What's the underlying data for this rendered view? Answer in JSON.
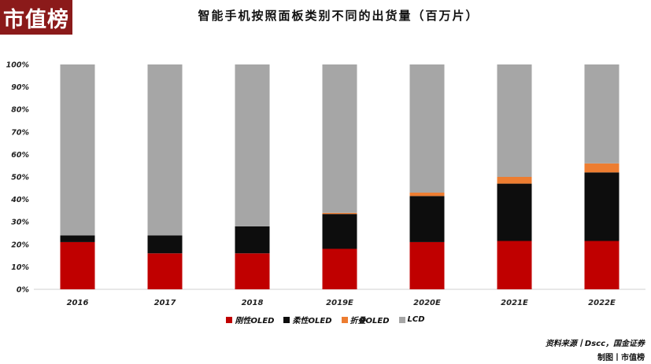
{
  "logo": "市值榜",
  "title": "智能手机按照面板类别不同的出货量（百万片）",
  "source": "资料来源丨Dscc，国金证券",
  "credit": "制图丨市值榜",
  "chart_data": {
    "type": "bar",
    "stacked": true,
    "categories": [
      "2016",
      "2017",
      "2018",
      "2019E",
      "2020E",
      "2021E",
      "2022E"
    ],
    "series": [
      {
        "name": "刚性OLED",
        "color": "#c00000",
        "values": [
          21,
          16,
          16,
          18,
          21,
          21.5,
          21.5
        ]
      },
      {
        "name": "柔性OLED",
        "color": "#0d0d0d",
        "values": [
          3,
          8,
          12,
          15.5,
          20.5,
          25.5,
          30.5
        ]
      },
      {
        "name": "折叠OLED",
        "color": "#ed7d31",
        "values": [
          0,
          0,
          0,
          0.5,
          1.5,
          3,
          4
        ]
      },
      {
        "name": "LCD",
        "color": "#a6a6a6",
        "values": [
          76,
          76,
          72,
          66,
          57,
          50,
          44
        ]
      }
    ],
    "ylim": [
      0,
      100
    ],
    "yticks": [
      "0%",
      "10%",
      "20%",
      "30%",
      "40%",
      "50%",
      "60%",
      "70%",
      "80%",
      "90%",
      "100%"
    ],
    "xlabel": "",
    "ylabel": "",
    "grid": false,
    "legend_position": "bottom"
  }
}
